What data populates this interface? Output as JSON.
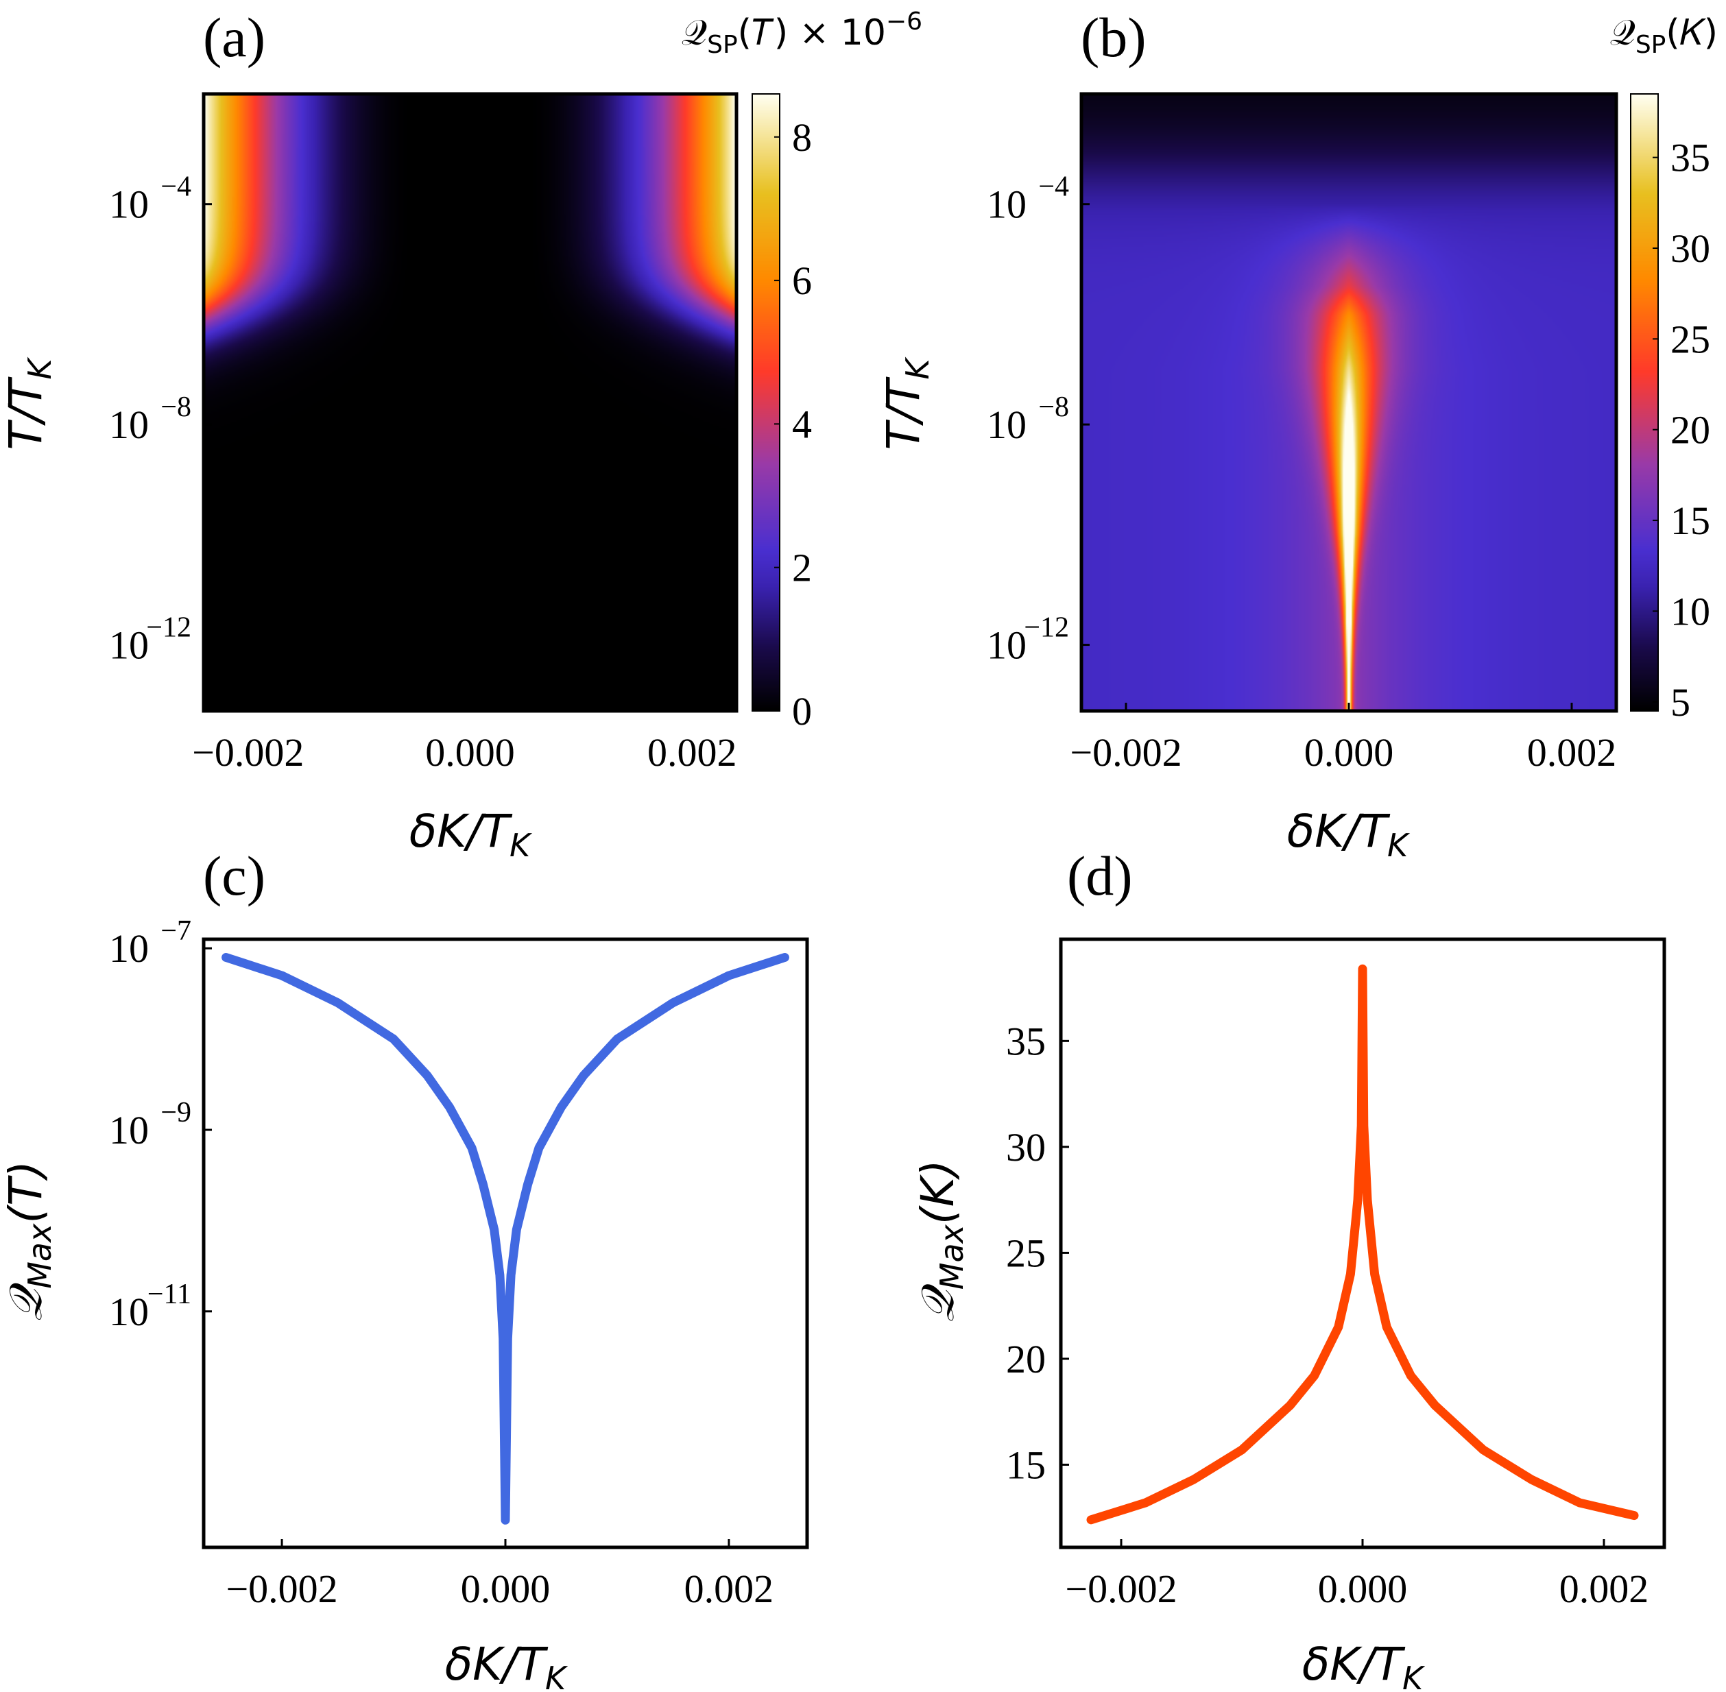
{
  "colors": {
    "blue_line": "#4169e1",
    "orange_line": "#ff4500",
    "frame": "#000000",
    "colormap": [
      "#000000",
      "#1a0a4a",
      "#3a22b0",
      "#4a2fd0",
      "#9a3aa8",
      "#ff3a2a",
      "#ff8a00",
      "#e8c020",
      "#fffff0"
    ]
  },
  "chart_data": [
    {
      "panel_label": "(a)",
      "type": "heatmap",
      "xlabel": "δK/T_K",
      "ylabel": "T/T_K",
      "y_scale": "log",
      "x_range": [
        -0.0024,
        0.0024
      ],
      "y_log10_range": [
        -13.2,
        -2
      ],
      "x_ticks": [
        "−0.002",
        "0.000",
        "0.002"
      ],
      "y_ticks": [
        [
          "10",
          "−4"
        ],
        [
          "10",
          "−8"
        ],
        [
          "10",
          "−12"
        ]
      ],
      "colorbar": {
        "title": "Q_SP(T) × 10^−6",
        "ticks": [
          "0",
          "2",
          "4",
          "6",
          "8"
        ],
        "range": [
          0,
          8.6
        ]
      }
    },
    {
      "panel_label": "(b)",
      "type": "heatmap",
      "xlabel": "δK/T_K",
      "ylabel": "T/T_K",
      "y_scale": "log",
      "x_range": [
        -0.0024,
        0.0024
      ],
      "y_log10_range": [
        -13.2,
        -2
      ],
      "x_ticks": [
        "−0.002",
        "0.000",
        "0.002"
      ],
      "y_ticks": [
        [
          "10",
          "−4"
        ],
        [
          "10",
          "−8"
        ],
        [
          "10",
          "−12"
        ]
      ],
      "colorbar": {
        "title": "Q_SP(K)",
        "ticks": [
          "5",
          "10",
          "15",
          "20",
          "25",
          "30",
          "35"
        ],
        "range": [
          4.5,
          38.5
        ]
      }
    },
    {
      "panel_label": "(c)",
      "type": "line",
      "xlabel": "δK/T_K",
      "ylabel": "Q_Max(T)",
      "y_scale": "log",
      "x_range": [
        -0.0027,
        0.0027
      ],
      "y_log10_range": [
        -13.6,
        -6.9
      ],
      "x_ticks": [
        "−0.002",
        "0.000",
        "0.002"
      ],
      "y_ticks": [
        [
          "10",
          "−7"
        ],
        [
          "10",
          "−9"
        ],
        [
          "10",
          "−11"
        ]
      ],
      "series": [
        {
          "color": "blue",
          "x": [
            -0.0025,
            -0.002,
            -0.0015,
            -0.001,
            -0.0007,
            -0.0005,
            -0.0003,
            -0.0002,
            -0.0001,
            -5e-05,
            -2e-05,
            0,
            2e-05,
            5e-05,
            0.0001,
            0.0002,
            0.0003,
            0.0005,
            0.0007,
            0.001,
            0.0015,
            0.002,
            0.0025
          ],
          "y_log10": [
            -7.1,
            -7.3,
            -7.6,
            -8.0,
            -8.4,
            -8.75,
            -9.2,
            -9.6,
            -10.1,
            -10.6,
            -11.3,
            -13.3,
            -11.3,
            -10.6,
            -10.1,
            -9.6,
            -9.2,
            -8.75,
            -8.4,
            -8.0,
            -7.6,
            -7.3,
            -7.1
          ]
        }
      ]
    },
    {
      "panel_label": "(d)",
      "type": "line",
      "xlabel": "δK/T_K",
      "ylabel": "Q_Max(K)",
      "x_range": [
        -0.0025,
        0.0025
      ],
      "y_range": [
        11.1,
        39.8
      ],
      "x_ticks": [
        "−0.002",
        "0.000",
        "0.002"
      ],
      "y_ticks": [
        "15",
        "20",
        "25",
        "30",
        "35"
      ],
      "series": [
        {
          "color": "orange",
          "x": [
            -0.00225,
            -0.0018,
            -0.0014,
            -0.001,
            -0.0006,
            -0.0004,
            -0.0002,
            -0.0001,
            -4e-05,
            -1e-05,
            0,
            1e-05,
            4e-05,
            0.0001,
            0.0002,
            0.0004,
            0.0006,
            0.001,
            0.0014,
            0.0018,
            0.00225
          ],
          "y": [
            12.4,
            13.2,
            14.3,
            15.7,
            17.8,
            19.2,
            21.5,
            24.0,
            27.5,
            31.0,
            38.4,
            31.0,
            27.5,
            24.0,
            21.5,
            19.2,
            17.8,
            15.7,
            14.3,
            13.2,
            12.6
          ]
        }
      ]
    }
  ]
}
